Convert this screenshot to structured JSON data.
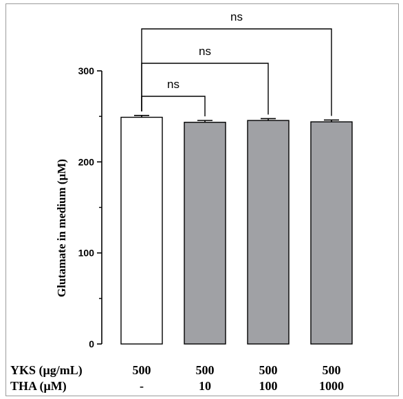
{
  "chart_data": {
    "type": "bar",
    "title": "",
    "ylabel": "Glutamate in medium (μM)",
    "xlabel": "",
    "ylim": [
      0,
      300
    ],
    "yticks_major": [
      0,
      100,
      200,
      300
    ],
    "yticks_minor": [
      50,
      150,
      250
    ],
    "series": [
      {
        "values": [
          249,
          243.5,
          245.5,
          244
        ],
        "errors": [
          2,
          2,
          2,
          2
        ],
        "colors": [
          "#ffffff",
          "#a0a1a5",
          "#a0a1a5",
          "#a0a1a5"
        ]
      }
    ],
    "conditions": [
      {
        "label": "YKS (μg/mL)",
        "values": [
          "500",
          "500",
          "500",
          "500"
        ]
      },
      {
        "label": "THA (μM)",
        "values": [
          "-",
          "10",
          "100",
          "1000"
        ]
      }
    ],
    "comparisons": [
      {
        "from": 0,
        "to": 1,
        "label": "ns"
      },
      {
        "from": 0,
        "to": 2,
        "label": "ns"
      },
      {
        "from": 0,
        "to": 3,
        "label": "ns"
      }
    ]
  }
}
